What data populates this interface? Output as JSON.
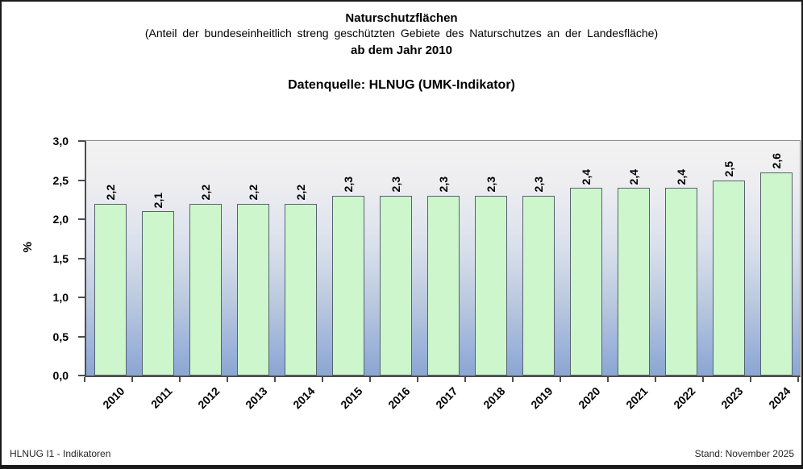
{
  "header": {
    "title": "Naturschutzflächen",
    "subtitle": "(Anteil der bundeseinheitlich streng geschützten Gebiete des Naturschutzes an der Landesfläche)",
    "subtitle2": "ab dem Jahr 2010",
    "source": "Datenquelle: HLNUG (UMK-Indikator)"
  },
  "chart_data": {
    "type": "bar",
    "title": "Naturschutzflächen ab dem Jahr 2010",
    "categories": [
      "2010",
      "2011",
      "2012",
      "2013",
      "2014",
      "2015",
      "2016",
      "2017",
      "2018",
      "2019",
      "2020",
      "2021",
      "2022",
      "2023",
      "2024"
    ],
    "values": [
      2.2,
      2.1,
      2.2,
      2.2,
      2.2,
      2.3,
      2.3,
      2.3,
      2.3,
      2.3,
      2.4,
      2.4,
      2.4,
      2.5,
      2.6
    ],
    "bar_labels": [
      "2,2",
      "2,1",
      "2,2",
      "2,2",
      "2,2",
      "2,3",
      "2,3",
      "2,3",
      "2,3",
      "2,3",
      "2,4",
      "2,4",
      "2,4",
      "2,5",
      "2,6"
    ],
    "ylabel": "%",
    "ylim": [
      0,
      3
    ],
    "ytick_step": 0.5,
    "y_tick_labels": [
      "0,0",
      "0,5",
      "1,0",
      "1,5",
      "2,0",
      "2,5",
      "3,0"
    ],
    "grid": false,
    "legend": "none",
    "bar_fill": "#cdf6cd",
    "bar_border": "#56626e",
    "plot_bg_top": "#f2f2f2",
    "plot_bg_bottom": "#8aa6d2"
  },
  "footer": {
    "left": "HLNUG I1 - Indikatoren",
    "right": "Stand: November 2025"
  }
}
